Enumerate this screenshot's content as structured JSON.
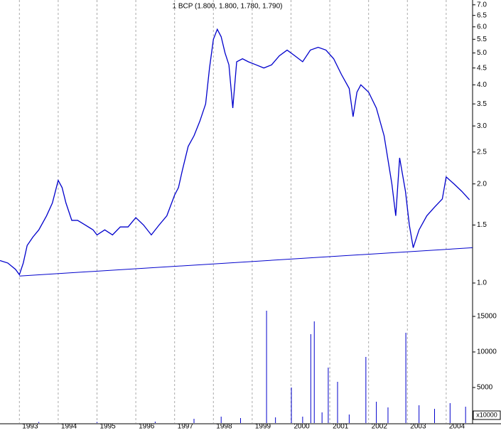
{
  "chart_data": [
    {
      "type": "line",
      "title": "1 BCP (1.800, 1.800, 1.780, 1.790)",
      "log_scale": true,
      "grid": true,
      "color": "#0000cc",
      "xlim": [
        1992.5,
        2004.68
      ],
      "xticks": [
        1993,
        1994,
        1995,
        1996,
        1997,
        1998,
        1999,
        2000,
        2001,
        2002,
        2003,
        2004
      ],
      "ylim": [
        0.853,
        7.24
      ],
      "yticks": [
        {
          "value": 1,
          "label": "1.0"
        },
        {
          "value": 1.5,
          "label": "1.5"
        },
        {
          "value": 2,
          "label": "2.0"
        },
        {
          "value": 2.5,
          "label": "2.5"
        },
        {
          "value": 3,
          "label": "3.0"
        },
        {
          "value": 3.5,
          "label": "3.5"
        },
        {
          "value": 4,
          "label": "4.0"
        },
        {
          "value": 4.5,
          "label": "4.5"
        },
        {
          "value": 5,
          "label": "5.0"
        },
        {
          "value": 5.5,
          "label": "5.5"
        },
        {
          "value": 6,
          "label": "6.0"
        },
        {
          "value": 6.5,
          "label": "6.5"
        },
        {
          "value": 7,
          "label": "7.0"
        }
      ],
      "series": [
        {
          "color": "#0000cc",
          "x": [
            1992.5,
            1992.7,
            1992.9,
            1993.0,
            1993.1,
            1993.2,
            1993.35,
            1993.5,
            1993.7,
            1993.85,
            1994.0,
            1994.1,
            1994.2,
            1994.35,
            1994.5,
            1994.7,
            1994.9,
            1995.0,
            1995.2,
            1995.4,
            1995.6,
            1995.8,
            1996.0,
            1996.2,
            1996.4,
            1996.6,
            1996.8,
            1997.0,
            1997.1,
            1997.2,
            1997.35,
            1997.5,
            1997.65,
            1997.8,
            1997.9,
            1998.0,
            1998.1,
            1998.2,
            1998.3,
            1998.4,
            1998.5,
            1998.6,
            1998.75,
            1998.9,
            1999.1,
            1999.3,
            1999.5,
            1999.7,
            1999.9,
            2000.1,
            2000.3,
            2000.5,
            2000.7,
            2000.9,
            2001.1,
            2001.3,
            2001.5,
            2001.6,
            2001.7,
            2001.8,
            2002.0,
            2002.2,
            2002.4,
            2002.6,
            2002.7,
            2002.8,
            2002.95,
            2003.05,
            2003.15,
            2003.3,
            2003.5,
            2003.7,
            2003.9,
            2004.0,
            2004.2,
            2004.4,
            2004.6
          ],
          "values": [
            1.17,
            1.15,
            1.1,
            1.06,
            1.15,
            1.3,
            1.38,
            1.45,
            1.6,
            1.75,
            2.05,
            1.95,
            1.75,
            1.55,
            1.55,
            1.5,
            1.45,
            1.4,
            1.45,
            1.4,
            1.48,
            1.48,
            1.58,
            1.5,
            1.4,
            1.5,
            1.6,
            1.85,
            1.95,
            2.2,
            2.6,
            2.8,
            3.1,
            3.5,
            4.5,
            5.5,
            5.9,
            5.6,
            5.0,
            4.6,
            3.4,
            4.7,
            4.8,
            4.7,
            4.6,
            4.5,
            4.6,
            4.9,
            5.1,
            4.9,
            4.7,
            5.1,
            5.2,
            5.1,
            4.8,
            4.3,
            3.9,
            3.2,
            3.8,
            4.0,
            3.8,
            3.4,
            2.8,
            2.0,
            1.6,
            2.4,
            1.9,
            1.5,
            1.28,
            1.45,
            1.6,
            1.7,
            1.8,
            2.1,
            2.0,
            1.9,
            1.79
          ]
        },
        {
          "color": "#0000cc",
          "x": [
            1993.0,
            2004.68
          ],
          "values": [
            1.05,
            1.28
          ]
        }
      ]
    },
    {
      "type": "bar",
      "color": "#0000cc",
      "xlim": [
        1992.5,
        2004.68
      ],
      "ylim": [
        0,
        16500
      ],
      "yticks": [
        5000,
        10000,
        15000
      ],
      "unit_label": "x10000",
      "x": [
        1993.5,
        1995.0,
        1996.5,
        1997.5,
        1998.2,
        1998.7,
        1999.37,
        1999.6,
        2000.01,
        2000.3,
        2000.51,
        2000.6,
        2000.8,
        2000.96,
        2001.2,
        2001.5,
        2001.93,
        2002.2,
        2002.5,
        2002.96,
        2003.3,
        2003.7,
        2004.1,
        2004.5
      ],
      "values": [
        150,
        150,
        200,
        600,
        900,
        700,
        15800,
        800,
        5000,
        900,
        12500,
        14300,
        1500,
        7800,
        5800,
        1200,
        9300,
        3000,
        2200,
        12700,
        2500,
        2000,
        2800,
        2300
      ]
    }
  ]
}
